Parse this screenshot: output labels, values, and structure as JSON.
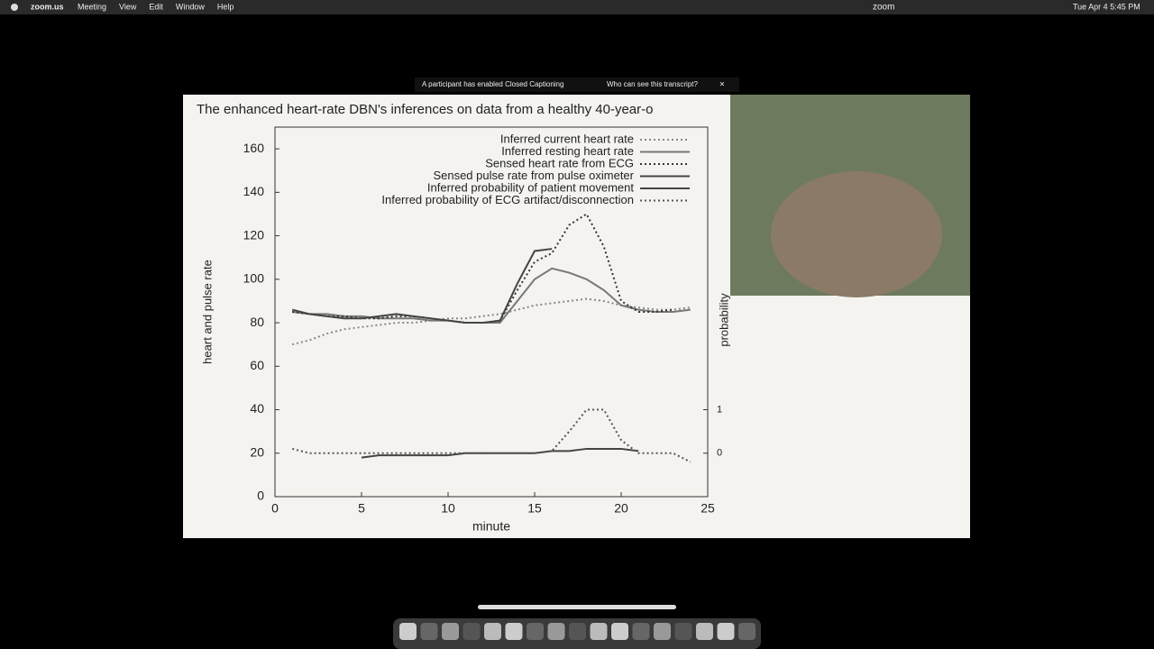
{
  "menu_bar": {
    "app": "zoom.us",
    "items": [
      "Meeting",
      "View",
      "Edit",
      "Window",
      "Help"
    ],
    "status": [
      "zoom",
      "Tue Apr 4  5:45 PM"
    ]
  },
  "notification": {
    "text": "A participant has enabled Closed Captioning",
    "link": "Who can see this transcript?"
  },
  "chart_data": {
    "type": "line",
    "title": "The enhanced heart-rate DBN's inferences on data from a healthy 40-year-o",
    "x_label": "minute",
    "y_label": "heart and pulse rate",
    "y2_label": "probability",
    "xlim": [
      0,
      25
    ],
    "xticks": [
      0,
      5,
      10,
      15,
      20,
      25
    ],
    "ylim": [
      0,
      170
    ],
    "yticks": [
      0,
      20,
      40,
      60,
      80,
      100,
      120,
      140,
      160
    ],
    "y2lim": [
      -1,
      7.5
    ],
    "y2ticks": [
      0,
      1
    ],
    "x": [
      1,
      2,
      3,
      4,
      5,
      6,
      7,
      8,
      9,
      10,
      11,
      12,
      13,
      14,
      15,
      16,
      17,
      18,
      19,
      20,
      21,
      22,
      23,
      24
    ],
    "series": [
      {
        "name": "Inferred current heart rate",
        "color": "#888",
        "style": "dotted",
        "values": [
          70,
          72,
          75,
          77,
          78,
          79,
          80,
          80,
          81,
          82,
          82,
          83,
          84,
          86,
          88,
          89,
          90,
          91,
          90,
          88,
          87,
          86,
          86,
          87
        ]
      },
      {
        "name": "Inferred resting heart rate",
        "color": "#777",
        "style": "solid",
        "values": [
          85,
          84,
          84,
          83,
          83,
          82,
          82,
          82,
          81,
          81,
          80,
          80,
          80,
          90,
          100,
          105,
          103,
          100,
          95,
          88,
          86,
          85,
          85,
          86
        ]
      },
      {
        "name": "Sensed heart rate from ECG",
        "color": "#333",
        "style": "dotted",
        "values": [
          85,
          84,
          83,
          83,
          82,
          82,
          83,
          83,
          82,
          81,
          80,
          80,
          81,
          95,
          108,
          112,
          125,
          130,
          115,
          90,
          85,
          85,
          86,
          null
        ]
      },
      {
        "name": "Sensed pulse rate from pulse oximeter",
        "color": "#444",
        "style": "solid",
        "values": [
          86,
          84,
          83,
          82,
          82,
          83,
          84,
          83,
          82,
          81,
          80,
          80,
          81,
          98,
          113,
          114,
          null,
          null,
          null,
          null,
          null,
          null,
          null,
          null
        ]
      },
      {
        "name": "Inferred probability of patient movement",
        "color": "#444",
        "style": "solid",
        "axis": "y2",
        "values": [
          null,
          null,
          null,
          null,
          -0.1,
          -0.05,
          -0.05,
          -0.05,
          -0.05,
          -0.05,
          0,
          0,
          0,
          0,
          0,
          0.05,
          0.05,
          0.1,
          0.1,
          0.1,
          0.05,
          null,
          null,
          null
        ]
      },
      {
        "name": "Inferred probability of ECG artifact/disconnection",
        "color": "#555",
        "style": "dotted",
        "axis": "y2",
        "values": [
          0.1,
          0,
          0,
          0,
          0,
          0,
          0,
          0,
          0,
          0,
          0,
          0,
          0,
          0,
          0,
          0.05,
          0.5,
          1,
          1,
          0.3,
          0,
          0,
          0,
          -0.2
        ]
      }
    ]
  }
}
